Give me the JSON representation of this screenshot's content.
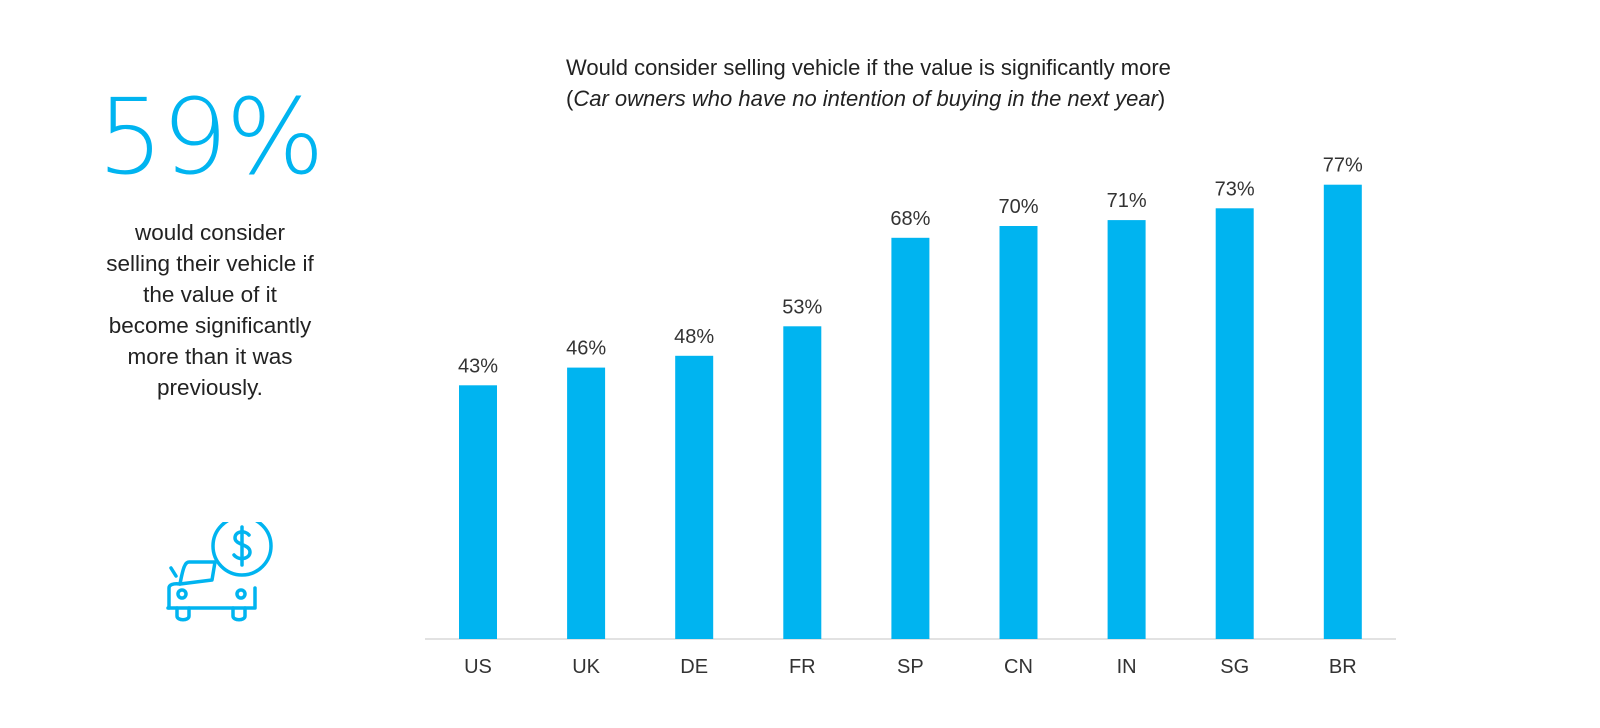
{
  "stat": {
    "value": "59%",
    "description": "would consider selling their vehicle if the value of it become significantly more than it was previously."
  },
  "icons": {
    "car": "car-with-dollar-coin-icon"
  },
  "colors": {
    "accent": "#00b4f0",
    "text": "#222222",
    "axis": "#d9d9d9"
  },
  "chart_data": {
    "type": "bar",
    "title": "Would consider selling vehicle if the value is significantly more",
    "subtitle_open": "(",
    "subtitle_italic": "Car owners who have no intention of buying in the next year",
    "subtitle_close": ")",
    "categories": [
      "US",
      "UK",
      "DE",
      "FR",
      "SP",
      "CN",
      "IN",
      "SG",
      "BR"
    ],
    "values": [
      43,
      46,
      48,
      53,
      68,
      70,
      71,
      73,
      77
    ],
    "data_labels": [
      "43%",
      "46%",
      "48%",
      "53%",
      "68%",
      "70%",
      "71%",
      "73%",
      "77%"
    ],
    "ylim": [
      0,
      100
    ],
    "grid": false,
    "legend": "none",
    "color": "#00b4f0"
  }
}
